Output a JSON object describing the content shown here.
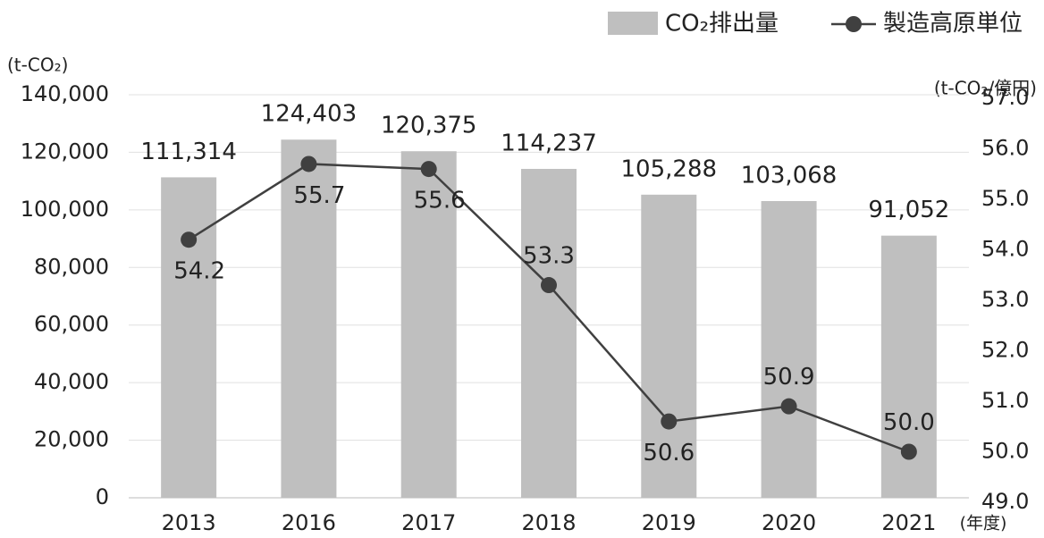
{
  "chart_data": {
    "type": "bar_line",
    "y_axis_label": "(t-CO₂)",
    "y2_axis_label": "(t-CO₂/億円)",
    "x_axis_label": "(年度)",
    "categories": [
      "2013",
      "2016",
      "2017",
      "2018",
      "2019",
      "2020",
      "2021"
    ],
    "series": [
      {
        "name": "CO₂排出量",
        "type": "bar",
        "color": "#bfbfbf",
        "axis": "y",
        "values": [
          111314,
          124403,
          120375,
          114237,
          105288,
          103068,
          91052
        ],
        "value_labels": [
          "111,314",
          "124,403",
          "120,375",
          "114,237",
          "105,288",
          "103,068",
          "91,052"
        ]
      },
      {
        "name": "製造高原単位",
        "type": "line",
        "color": "#404040",
        "axis": "y2",
        "values": [
          54.2,
          55.7,
          55.6,
          53.3,
          50.6,
          50.9,
          50.0
        ],
        "value_labels": [
          "54.2",
          "55.7",
          "55.6",
          "53.3",
          "50.6",
          "50.9",
          "50.0"
        ]
      }
    ],
    "ylim": [
      0,
      140000
    ],
    "yticks": [
      0,
      {
        "value": 20000,
        "label": "20,000"
      },
      {
        "value": 40000,
        "label": "40,000"
      },
      {
        "value": 60000,
        "label": "60,000"
      },
      {
        "value": 80000,
        "label": "80,000"
      },
      {
        "value": 100000,
        "label": "100,000"
      },
      {
        "value": 120000,
        "label": "120,000"
      },
      {
        "value": 140000,
        "label": "140,000"
      }
    ],
    "y2lim": [
      49,
      57
    ],
    "y2ticks": [
      {
        "value": 49,
        "label": "49.0"
      },
      {
        "value": 50,
        "label": "50.0"
      },
      {
        "value": 51,
        "label": "51.0"
      },
      {
        "value": 52,
        "label": "52.0"
      },
      {
        "value": 53,
        "label": "53.0"
      },
      {
        "value": 54,
        "label": "54.0"
      },
      {
        "value": 55,
        "label": "55.0"
      },
      {
        "value": 56,
        "label": "56.0"
      },
      {
        "value": 57,
        "label": "57.0"
      }
    ],
    "grid": true,
    "legend": "top-right"
  }
}
